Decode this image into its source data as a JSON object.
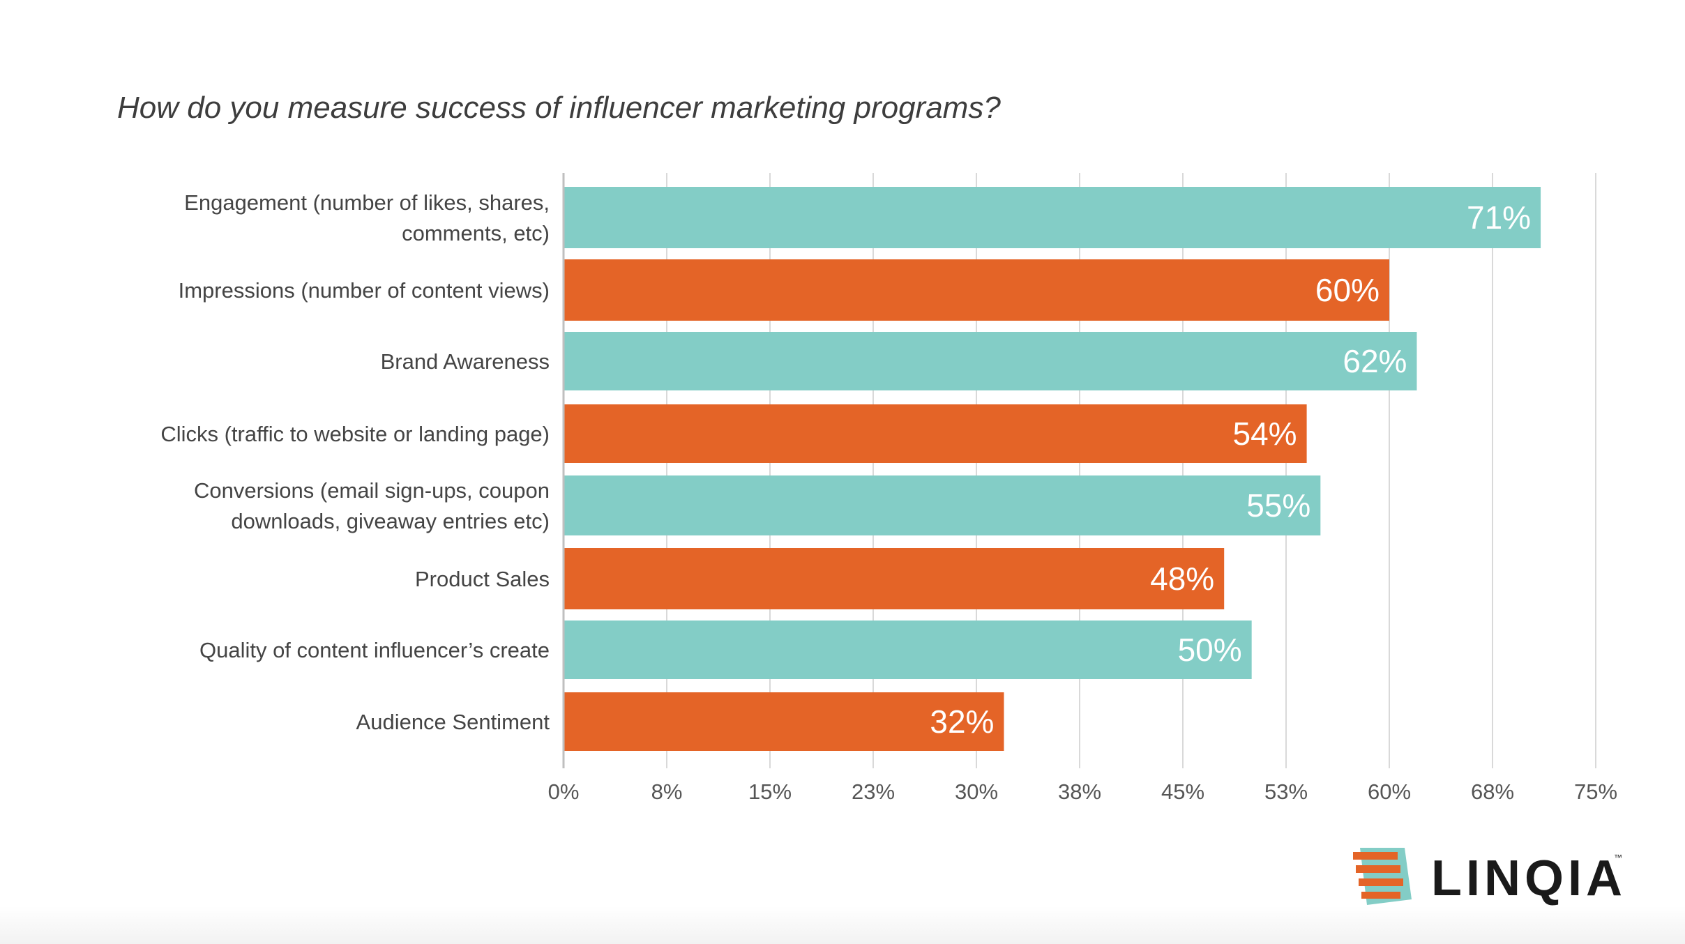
{
  "chart_data": {
    "type": "bar",
    "orientation": "horizontal",
    "title": "How do you measure success of influencer marketing programs?",
    "categories": [
      [
        "Engagement (number of likes, shares,",
        "comments, etc)"
      ],
      [
        "Impressions (number of content views)"
      ],
      [
        "Brand  Awareness"
      ],
      [
        "Clicks (traffic to website or landing page)"
      ],
      [
        "Conversions (email sign-ups, coupon",
        "downloads, giveaway entries etc)"
      ],
      [
        "Product Sales"
      ],
      [
        "Quality of content influencer’s create"
      ],
      [
        "Audience Sentiment"
      ]
    ],
    "values": [
      71,
      60,
      62,
      54,
      55,
      48,
      50,
      32
    ],
    "value_labels": [
      "71%",
      "60%",
      "62%",
      "54%",
      "55%",
      "48%",
      "50%",
      "32%"
    ],
    "xlim": [
      0,
      75
    ],
    "x_ticks": [
      0,
      7.5,
      15,
      22.5,
      30,
      37.5,
      45,
      52.5,
      60,
      67.5,
      75
    ],
    "x_tick_labels": [
      "0%",
      "8%",
      "15%",
      "23%",
      "30%",
      "38%",
      "45%",
      "53%",
      "60%",
      "68%",
      "75%"
    ],
    "grid": true,
    "colors": [
      "#83cdc6",
      "#e46427"
    ]
  },
  "logo": {
    "text": "LINQIA",
    "tm": "™",
    "colors": {
      "orange": "#e46427",
      "teal": "#83cdc6",
      "text": "#1a1a1a"
    }
  }
}
